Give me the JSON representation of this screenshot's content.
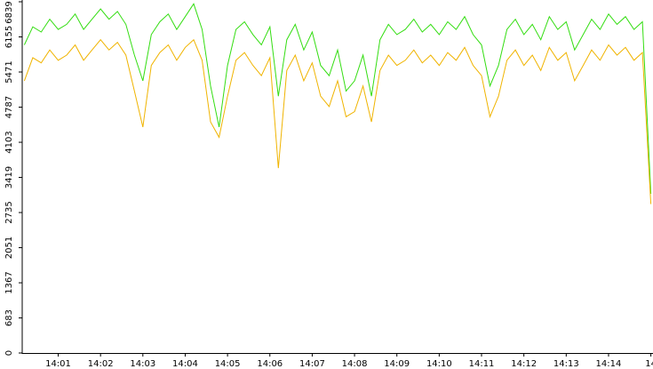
{
  "chart_data": {
    "type": "line",
    "x": [
      0.2,
      0.4,
      0.6,
      0.8,
      1.0,
      1.2,
      1.4,
      1.6,
      1.8,
      2.0,
      2.2,
      2.4,
      2.6,
      2.8,
      3.0,
      3.2,
      3.4,
      3.6,
      3.8,
      4.0,
      4.2,
      4.4,
      4.6,
      4.8,
      5.0,
      5.2,
      5.4,
      5.6,
      5.8,
      6.0,
      6.2,
      6.4,
      6.6,
      6.8,
      7.0,
      7.2,
      7.4,
      7.6,
      7.8,
      8.0,
      8.2,
      8.4,
      8.6,
      8.8,
      9.0,
      9.2,
      9.4,
      9.6,
      9.8,
      10.0,
      10.2,
      10.4,
      10.6,
      10.8,
      11.0,
      11.2,
      11.4,
      11.6,
      11.8,
      12.0,
      12.2,
      12.4,
      12.6,
      12.8,
      13.0,
      13.2,
      13.4,
      13.6,
      13.8,
      14.0,
      14.2,
      14.4,
      14.6,
      14.8,
      15.0
    ],
    "series": [
      {
        "color": "#33dd11",
        "values": [
          6000,
          6350,
          6250,
          6500,
          6300,
          6400,
          6600,
          6300,
          6500,
          6700,
          6500,
          6650,
          6400,
          5800,
          5300,
          6200,
          6450,
          6600,
          6300,
          6550,
          6800,
          6300,
          5200,
          4400,
          5600,
          6300,
          6450,
          6200,
          6000,
          6350,
          5000,
          6100,
          6400,
          5900,
          6250,
          5600,
          5400,
          5900,
          5100,
          5300,
          5800,
          5000,
          6100,
          6400,
          6200,
          6300,
          6500,
          6250,
          6400,
          6200,
          6450,
          6300,
          6550,
          6200,
          6000,
          5200,
          5600,
          6300,
          6500,
          6200,
          6400,
          6100,
          6550,
          6300,
          6450,
          5900,
          6200,
          6500,
          6300,
          6600,
          6400,
          6550,
          6300,
          6450,
          3100
        ]
      },
      {
        "color": "#f0b400",
        "values": [
          5300,
          5750,
          5650,
          5900,
          5700,
          5800,
          6000,
          5700,
          5900,
          6100,
          5900,
          6050,
          5800,
          5100,
          4400,
          5600,
          5850,
          6000,
          5700,
          5950,
          6100,
          5700,
          4500,
          4200,
          5000,
          5700,
          5850,
          5600,
          5400,
          5750,
          3600,
          5500,
          5800,
          5300,
          5650,
          5000,
          4800,
          5300,
          4600,
          4700,
          5200,
          4500,
          5500,
          5800,
          5600,
          5700,
          5900,
          5650,
          5800,
          5600,
          5850,
          5700,
          5950,
          5600,
          5400,
          4600,
          5000,
          5700,
          5900,
          5600,
          5800,
          5500,
          5950,
          5700,
          5850,
          5300,
          5600,
          5900,
          5700,
          6000,
          5800,
          5950,
          5700,
          5850,
          2900
        ]
      }
    ],
    "xlim": [
      0.15,
      15.05
    ],
    "xticks": [
      {
        "value": 1,
        "label": "14:01"
      },
      {
        "value": 2,
        "label": "14:02"
      },
      {
        "value": 3,
        "label": "14:03"
      },
      {
        "value": 4,
        "label": "14:04"
      },
      {
        "value": 5,
        "label": "14:05"
      },
      {
        "value": 6,
        "label": "14:06"
      },
      {
        "value": 7,
        "label": "14:07"
      },
      {
        "value": 8,
        "label": "14:08"
      },
      {
        "value": 9,
        "label": "14:09"
      },
      {
        "value": 10,
        "label": "14:10"
      },
      {
        "value": 11,
        "label": "14:11"
      },
      {
        "value": 12,
        "label": "14:12"
      },
      {
        "value": 13,
        "label": "14:13"
      },
      {
        "value": 14,
        "label": "14:14"
      },
      {
        "value": 15,
        "label": "14"
      }
    ],
    "ylim": [
      0,
      6839
    ],
    "yticks": [
      0,
      683,
      1367,
      2051,
      2735,
      3419,
      4103,
      4787,
      5471,
      6155,
      6839
    ]
  }
}
